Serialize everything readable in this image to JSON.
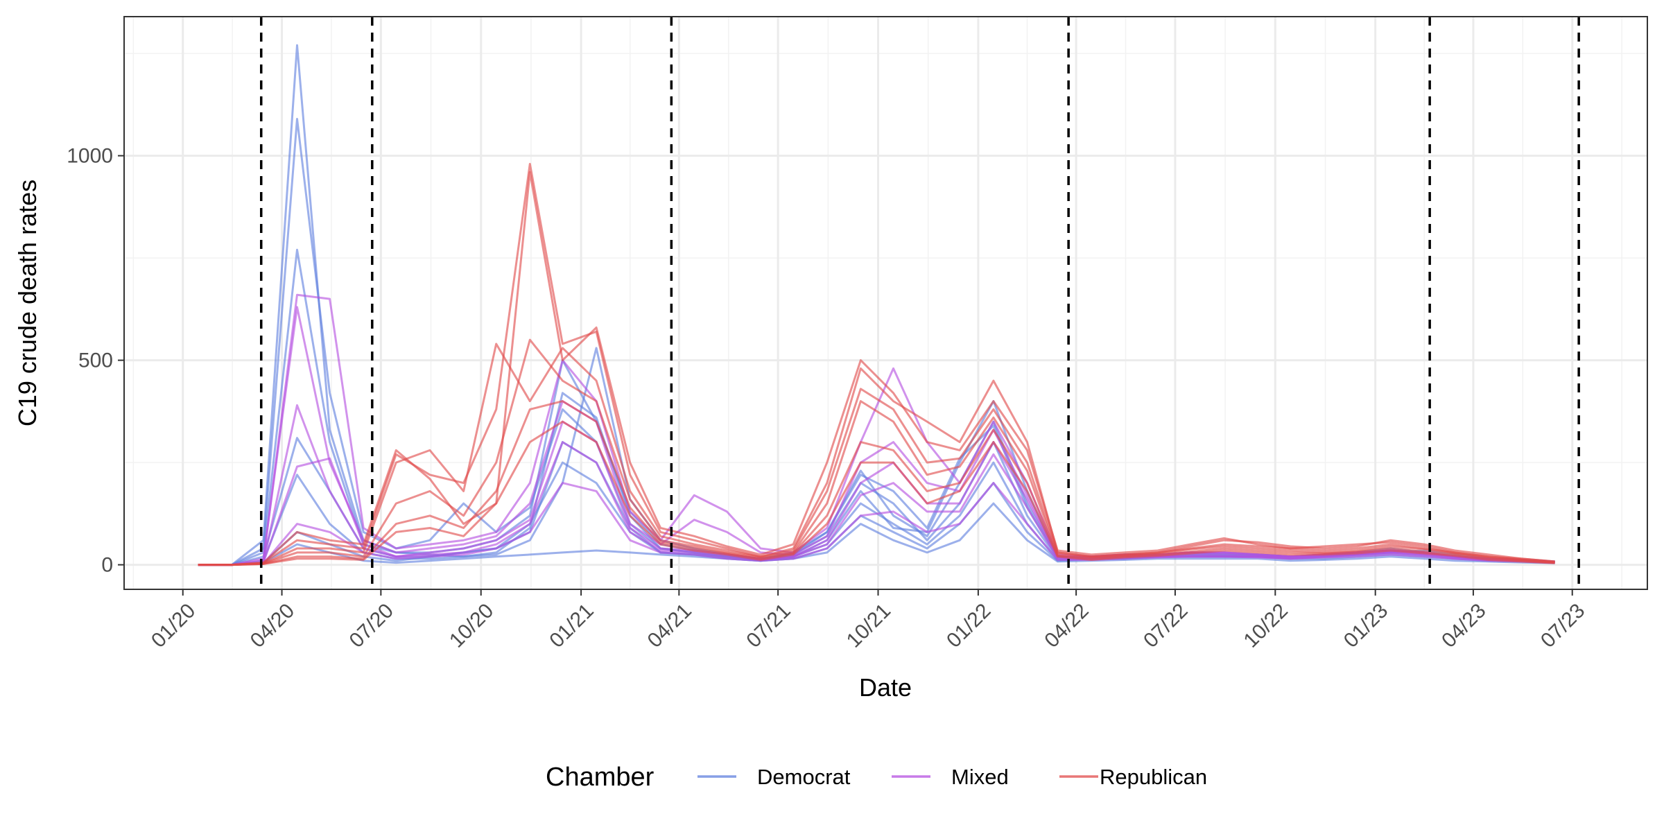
{
  "chart_data": {
    "type": "line",
    "title": "",
    "xlabel": "Date",
    "ylabel": "C19 crude death rates",
    "x_range": [
      "2019-11-08",
      "2023-09-08"
    ],
    "ylim": [
      -60,
      1340
    ],
    "x_ticks": [
      {
        "date": "2020-01-01",
        "label": "01/20"
      },
      {
        "date": "2020-04-01",
        "label": "04/20"
      },
      {
        "date": "2020-07-01",
        "label": "07/20"
      },
      {
        "date": "2020-10-01",
        "label": "10/20"
      },
      {
        "date": "2021-01-01",
        "label": "01/21"
      },
      {
        "date": "2021-04-01",
        "label": "04/21"
      },
      {
        "date": "2021-07-01",
        "label": "07/21"
      },
      {
        "date": "2021-10-01",
        "label": "10/21"
      },
      {
        "date": "2022-01-01",
        "label": "01/22"
      },
      {
        "date": "2022-04-01",
        "label": "04/22"
      },
      {
        "date": "2022-07-01",
        "label": "07/22"
      },
      {
        "date": "2022-10-01",
        "label": "10/22"
      },
      {
        "date": "2023-01-01",
        "label": "01/23"
      },
      {
        "date": "2023-04-01",
        "label": "04/23"
      },
      {
        "date": "2023-07-01",
        "label": "07/23"
      }
    ],
    "y_ticks": [
      {
        "value": 0,
        "label": "0"
      },
      {
        "value": 500,
        "label": "500"
      },
      {
        "value": 1000,
        "label": "1000"
      }
    ],
    "vlines": [
      "2020-03-13",
      "2020-06-23",
      "2021-03-25",
      "2022-03-25",
      "2023-02-20",
      "2023-07-07"
    ],
    "grid": true,
    "legend": {
      "title": "Chamber",
      "position": "bottom",
      "entries": [
        {
          "name": "Democrat",
          "color": "#5f7fde"
        },
        {
          "name": "Mixed",
          "color": "#b44fe0"
        },
        {
          "name": "Republican",
          "color": "#e04a4a"
        }
      ]
    },
    "months": [
      "2020-01",
      "2020-02",
      "2020-03",
      "2020-04",
      "2020-05",
      "2020-06",
      "2020-07",
      "2020-08",
      "2020-09",
      "2020-10",
      "2020-11",
      "2020-12",
      "2021-01",
      "2021-02",
      "2021-03",
      "2021-04",
      "2021-05",
      "2021-06",
      "2021-07",
      "2021-08",
      "2021-09",
      "2021-10",
      "2021-11",
      "2021-12",
      "2022-01",
      "2022-02",
      "2022-03",
      "2022-04",
      "2022-05",
      "2022-06",
      "2022-07",
      "2022-08",
      "2022-09",
      "2022-10",
      "2022-11",
      "2022-12",
      "2023-01",
      "2023-02",
      "2023-03",
      "2023-04",
      "2023-05",
      "2023-06"
    ],
    "series": [
      {
        "name": "Democrat",
        "values": [
          0,
          0,
          60,
          1270,
          330,
          60,
          30,
          25,
          20,
          30,
          90,
          420,
          360,
          120,
          40,
          30,
          20,
          15,
          30,
          80,
          230,
          120,
          70,
          200,
          350,
          150,
          20,
          15,
          20,
          20,
          25,
          20,
          20,
          20,
          20,
          25,
          30,
          35,
          25,
          15,
          12,
          8
        ]
      },
      {
        "name": "Democrat",
        "values": [
          0,
          0,
          40,
          1090,
          420,
          80,
          40,
          60,
          150,
          80,
          140,
          380,
          300,
          100,
          40,
          30,
          20,
          15,
          20,
          60,
          180,
          90,
          80,
          250,
          400,
          180,
          20,
          15,
          25,
          25,
          30,
          25,
          25,
          20,
          20,
          30,
          35,
          30,
          20,
          15,
          12,
          8
        ]
      },
      {
        "name": "Democrat",
        "values": [
          0,
          0,
          30,
          770,
          300,
          50,
          30,
          30,
          40,
          60,
          120,
          500,
          350,
          130,
          50,
          35,
          25,
          15,
          25,
          70,
          200,
          150,
          60,
          150,
          300,
          120,
          15,
          20,
          20,
          20,
          25,
          25,
          25,
          20,
          25,
          30,
          40,
          30,
          20,
          15,
          10,
          6
        ]
      },
      {
        "name": "Democrat",
        "values": [
          0,
          0,
          20,
          310,
          180,
          40,
          20,
          20,
          30,
          40,
          80,
          300,
          250,
          90,
          30,
          25,
          20,
          10,
          20,
          50,
          150,
          100,
          50,
          120,
          250,
          100,
          12,
          15,
          15,
          20,
          20,
          20,
          20,
          15,
          20,
          25,
          30,
          25,
          20,
          12,
          10,
          6
        ]
      },
      {
        "name": "Democrat",
        "values": [
          0,
          0,
          10,
          220,
          100,
          30,
          15,
          15,
          20,
          25,
          60,
          200,
          530,
          160,
          60,
          40,
          25,
          15,
          25,
          80,
          220,
          180,
          90,
          260,
          340,
          140,
          18,
          20,
          25,
          25,
          30,
          30,
          25,
          20,
          25,
          30,
          35,
          30,
          20,
          15,
          12,
          7
        ]
      },
      {
        "name": "Democrat",
        "values": [
          0,
          0,
          5,
          80,
          50,
          20,
          10,
          20,
          30,
          40,
          100,
          250,
          200,
          80,
          30,
          25,
          15,
          10,
          15,
          40,
          120,
          80,
          40,
          100,
          200,
          80,
          10,
          15,
          15,
          20,
          20,
          20,
          20,
          15,
          15,
          20,
          25,
          20,
          15,
          10,
          8,
          5
        ]
      },
      {
        "name": "Democrat",
        "values": [
          0,
          0,
          5,
          50,
          30,
          10,
          5,
          10,
          15,
          20,
          25,
          30,
          35,
          30,
          25,
          20,
          15,
          10,
          15,
          30,
          100,
          60,
          30,
          60,
          150,
          60,
          8,
          10,
          12,
          15,
          15,
          15,
          15,
          10,
          12,
          15,
          20,
          15,
          10,
          8,
          6,
          4
        ]
      },
      {
        "name": "Mixed",
        "values": [
          0,
          0,
          10,
          660,
          650,
          90,
          40,
          50,
          60,
          80,
          200,
          500,
          400,
          130,
          60,
          170,
          130,
          40,
          30,
          90,
          300,
          480,
          300,
          200,
          350,
          200,
          25,
          20,
          25,
          25,
          30,
          30,
          25,
          20,
          25,
          30,
          35,
          30,
          20,
          15,
          12,
          7
        ]
      },
      {
        "name": "Mixed",
        "values": [
          0,
          0,
          15,
          630,
          250,
          60,
          30,
          40,
          50,
          70,
          150,
          400,
          350,
          100,
          50,
          110,
          80,
          30,
          25,
          70,
          250,
          300,
          200,
          180,
          330,
          170,
          20,
          20,
          25,
          25,
          30,
          30,
          25,
          20,
          25,
          30,
          35,
          30,
          20,
          15,
          12,
          7
        ]
      },
      {
        "name": "Mixed",
        "values": [
          0,
          0,
          5,
          390,
          180,
          40,
          20,
          30,
          40,
          60,
          110,
          350,
          300,
          90,
          40,
          35,
          25,
          15,
          20,
          60,
          200,
          250,
          150,
          150,
          300,
          160,
          18,
          15,
          20,
          20,
          25,
          25,
          20,
          20,
          20,
          25,
          30,
          25,
          20,
          12,
          10,
          6
        ]
      },
      {
        "name": "Mixed",
        "values": [
          0,
          0,
          5,
          240,
          260,
          50,
          20,
          25,
          30,
          50,
          100,
          300,
          250,
          80,
          35,
          30,
          20,
          12,
          20,
          50,
          170,
          200,
          130,
          130,
          270,
          140,
          15,
          15,
          20,
          20,
          20,
          20,
          20,
          15,
          20,
          25,
          30,
          25,
          15,
          12,
          10,
          5
        ]
      },
      {
        "name": "Mixed",
        "values": [
          0,
          0,
          3,
          100,
          80,
          30,
          15,
          20,
          25,
          40,
          80,
          200,
          180,
          60,
          30,
          25,
          15,
          10,
          15,
          40,
          120,
          130,
          80,
          100,
          200,
          100,
          12,
          12,
          15,
          18,
          20,
          20,
          18,
          15,
          18,
          20,
          25,
          20,
          15,
          10,
          8,
          5
        ]
      },
      {
        "name": "Republican",
        "values": [
          0,
          0,
          5,
          60,
          50,
          40,
          270,
          220,
          200,
          380,
          980,
          540,
          570,
          220,
          80,
          60,
          40,
          20,
          40,
          200,
          480,
          400,
          350,
          300,
          450,
          300,
          30,
          20,
          25,
          30,
          45,
          60,
          55,
          45,
          40,
          45,
          60,
          50,
          35,
          25,
          15,
          8
        ]
      },
      {
        "name": "Republican",
        "values": [
          0,
          0,
          5,
          80,
          60,
          50,
          280,
          210,
          100,
          150,
          960,
          500,
          580,
          250,
          90,
          70,
          45,
          25,
          50,
          250,
          500,
          420,
          300,
          280,
          400,
          280,
          35,
          25,
          30,
          35,
          50,
          65,
          50,
          40,
          45,
          50,
          55,
          45,
          30,
          20,
          15,
          8
        ]
      },
      {
        "name": "Republican",
        "values": [
          0,
          0,
          3,
          40,
          40,
          30,
          250,
          280,
          180,
          540,
          400,
          530,
          450,
          180,
          70,
          50,
          35,
          20,
          35,
          180,
          430,
          380,
          250,
          260,
          380,
          250,
          30,
          20,
          25,
          30,
          40,
          50,
          45,
          40,
          35,
          40,
          50,
          40,
          30,
          20,
          12,
          6
        ]
      },
      {
        "name": "Republican",
        "values": [
          0,
          0,
          3,
          30,
          30,
          20,
          150,
          180,
          120,
          250,
          550,
          450,
          400,
          160,
          60,
          45,
          30,
          18,
          30,
          150,
          400,
          350,
          220,
          240,
          360,
          230,
          25,
          18,
          22,
          28,
          38,
          45,
          40,
          35,
          30,
          35,
          45,
          38,
          28,
          18,
          12,
          6
        ]
      },
      {
        "name": "Republican",
        "values": [
          0,
          0,
          2,
          20,
          20,
          15,
          100,
          120,
          90,
          180,
          380,
          400,
          350,
          140,
          55,
          40,
          28,
          15,
          28,
          120,
          300,
          280,
          180,
          200,
          330,
          200,
          22,
          15,
          20,
          25,
          32,
          40,
          35,
          30,
          28,
          32,
          40,
          32,
          25,
          15,
          10,
          5
        ]
      },
      {
        "name": "Republican",
        "values": [
          0,
          0,
          2,
          15,
          15,
          12,
          80,
          90,
          70,
          150,
          300,
          350,
          300,
          120,
          50,
          35,
          25,
          12,
          25,
          100,
          250,
          250,
          150,
          180,
          300,
          180,
          20,
          12,
          18,
          22,
          28,
          35,
          30,
          25,
          25,
          28,
          35,
          28,
          22,
          12,
          8,
          4
        ]
      }
    ]
  }
}
